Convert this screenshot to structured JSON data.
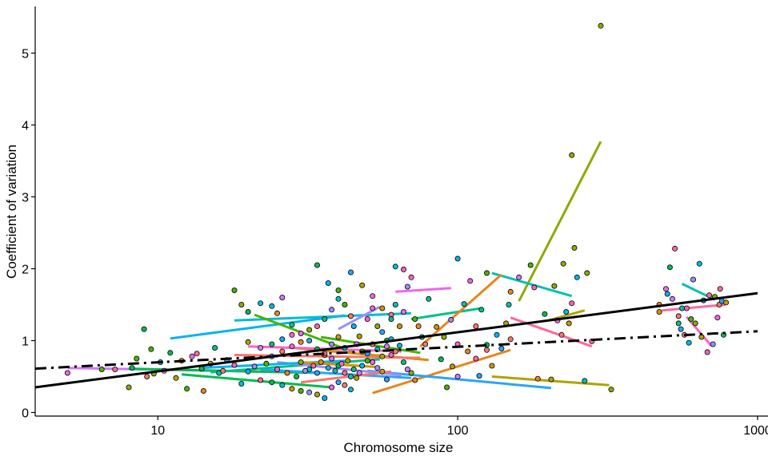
{
  "chart_data": {
    "type": "scatter",
    "title": "",
    "xlabel": "Chromosome size",
    "ylabel": "Coefficient of variation",
    "x_scale": "log10",
    "xlim": [
      3.9,
      1000
    ],
    "ylim": [
      -0.05,
      5.65
    ],
    "x_ticks": [
      10,
      100,
      1000
    ],
    "x_tick_labels": [
      "10",
      "100",
      "1000"
    ],
    "y_ticks": [
      0,
      1,
      2,
      3,
      4,
      5
    ],
    "y_tick_labels": [
      "0",
      "1",
      "2",
      "3",
      "4",
      "5"
    ],
    "grid": false,
    "legend": "none",
    "palette": [
      "#F8766D",
      "#E7851E",
      "#D09400",
      "#B2A100",
      "#89AC00",
      "#45B500",
      "#00BC51",
      "#00C087",
      "#00C0B2",
      "#00BCD6",
      "#00B3F2",
      "#29A3FF",
      "#9C8DFF",
      "#D277FF",
      "#F166E8",
      "#FF61C7",
      "#FF689E"
    ],
    "overall_fits": [
      {
        "style": "solid",
        "color": "#000000",
        "points": [
          [
            3.9,
            0.35
          ],
          [
            1000,
            1.66
          ]
        ]
      },
      {
        "style": "dotdash",
        "color": "#000000",
        "points": [
          [
            3.9,
            0.61
          ],
          [
            1000,
            1.13
          ]
        ]
      }
    ],
    "group_fits": [
      {
        "color": "#89AC00",
        "points": [
          [
            160,
            1.55
          ],
          [
            300,
            3.77
          ]
        ]
      },
      {
        "color": "#00B3F2",
        "points": [
          [
            11,
            1.03
          ],
          [
            42,
            1.35
          ]
        ]
      },
      {
        "color": "#00BCD6",
        "points": [
          [
            18,
            1.28
          ],
          [
            70,
            1.38
          ]
        ]
      },
      {
        "color": "#F166E8",
        "points": [
          [
            62,
            1.68
          ],
          [
            95,
            1.73
          ]
        ]
      },
      {
        "color": "#00C0B2",
        "points": [
          [
            130,
            1.94
          ],
          [
            240,
            1.62
          ]
        ]
      },
      {
        "color": "#00C087",
        "points": [
          [
            70,
            1.3
          ],
          [
            120,
            1.45
          ]
        ]
      },
      {
        "color": "#E7851E",
        "points": [
          [
            75,
            0.92
          ],
          [
            140,
            1.92
          ]
        ]
      },
      {
        "color": "#E7851E",
        "points": [
          [
            52,
            0.27
          ],
          [
            150,
            0.87
          ]
        ]
      },
      {
        "color": "#9C8DFF",
        "points": [
          [
            40,
            1.16
          ],
          [
            55,
            1.47
          ]
        ]
      },
      {
        "color": "#00C0B2",
        "points": [
          [
            560,
            1.79
          ],
          [
            720,
            1.57
          ]
        ]
      },
      {
        "color": "#FF689E",
        "points": [
          [
            480,
            1.42
          ],
          [
            780,
            1.5
          ]
        ]
      },
      {
        "color": "#FF61C7",
        "points": [
          [
            580,
            1.33
          ],
          [
            700,
            0.93
          ]
        ]
      },
      {
        "color": "#FF689E",
        "points": [
          [
            150,
            1.32
          ],
          [
            280,
            0.92
          ]
        ]
      },
      {
        "color": "#B2A100",
        "points": [
          [
            200,
            1.28
          ],
          [
            265,
            1.42
          ]
        ]
      },
      {
        "color": "#B2A100",
        "points": [
          [
            130,
            0.5
          ],
          [
            320,
            0.38
          ]
        ]
      },
      {
        "color": "#29A3FF",
        "points": [
          [
            50,
            0.58
          ],
          [
            205,
            0.34
          ]
        ]
      },
      {
        "color": "#45B500",
        "points": [
          [
            21,
            1.36
          ],
          [
            45,
            0.84
          ]
        ]
      },
      {
        "color": "#D09400",
        "points": [
          [
            28,
            0.9
          ],
          [
            80,
            0.73
          ]
        ]
      },
      {
        "color": "#00BC51",
        "points": [
          [
            12,
            0.53
          ],
          [
            38,
            0.35
          ]
        ]
      },
      {
        "color": "#F8766D",
        "points": [
          [
            18,
            0.8
          ],
          [
            75,
            0.76
          ]
        ]
      },
      {
        "color": "#D277FF",
        "points": [
          [
            5,
            0.62
          ],
          [
            28,
            0.56
          ]
        ]
      },
      {
        "color": "#00BC51",
        "points": [
          [
            8,
            0.61
          ],
          [
            35,
            0.55
          ]
        ]
      },
      {
        "color": "#FF61C7",
        "points": [
          [
            20,
            0.92
          ],
          [
            65,
            0.85
          ]
        ]
      },
      {
        "color": "#29A3FF",
        "points": [
          [
            22,
            0.6
          ],
          [
            70,
            0.48
          ]
        ]
      },
      {
        "color": "#00C087",
        "points": [
          [
            15,
            0.56
          ],
          [
            55,
            0.74
          ]
        ]
      },
      {
        "color": "#9C8DFF",
        "points": [
          [
            25,
            0.7
          ],
          [
            65,
            0.52
          ]
        ]
      },
      {
        "color": "#F8766D",
        "points": [
          [
            30,
            0.42
          ],
          [
            60,
            0.57
          ]
        ]
      },
      {
        "color": "#45B500",
        "points": [
          [
            35,
            1.05
          ],
          [
            75,
            0.83
          ]
        ]
      },
      {
        "color": "#00B3F2",
        "points": [
          [
            14,
            0.62
          ],
          [
            42,
            0.72
          ]
        ]
      },
      {
        "color": "#D09400",
        "points": [
          [
            30,
            0.7
          ],
          [
            55,
            0.63
          ]
        ]
      }
    ],
    "points": [
      [
        300,
        5.38,
        4
      ],
      [
        240,
        3.58,
        4
      ],
      [
        245,
        2.29,
        4
      ],
      [
        225,
        2.07,
        4
      ],
      [
        210,
        1.76,
        4
      ],
      [
        250,
        1.88,
        10
      ],
      [
        270,
        1.94,
        4
      ],
      [
        240,
        1.52,
        16
      ],
      [
        230,
        1.4,
        9
      ],
      [
        235,
        1.24,
        2
      ],
      [
        215,
        1.28,
        14
      ],
      [
        222,
        1.08,
        0
      ],
      [
        195,
        1.37,
        6
      ],
      [
        180,
        1.74,
        15
      ],
      [
        175,
        2.05,
        5
      ],
      [
        160,
        1.88,
        13
      ],
      [
        150,
        1.68,
        1
      ],
      [
        148,
        1.5,
        8
      ],
      [
        145,
        1.24,
        3
      ],
      [
        135,
        1.08,
        10
      ],
      [
        150,
        1.02,
        0
      ],
      [
        140,
        0.89,
        11
      ],
      [
        125,
        0.94,
        6
      ],
      [
        115,
        0.75,
        16
      ],
      [
        130,
        0.65,
        2
      ],
      [
        100,
        2.14,
        10
      ],
      [
        125,
        1.94,
        5
      ],
      [
        110,
        1.83,
        14
      ],
      [
        105,
        1.51,
        9
      ],
      [
        120,
        1.43,
        7
      ],
      [
        95,
        1.29,
        12
      ],
      [
        115,
        1.2,
        0
      ],
      [
        90,
        1.05,
        4
      ],
      [
        100,
        0.95,
        15
      ],
      [
        108,
        0.85,
        1
      ],
      [
        88,
        0.74,
        6
      ],
      [
        96,
        0.64,
        3
      ],
      [
        118,
        0.51,
        11
      ],
      [
        100,
        0.5,
        13
      ],
      [
        92,
        0.35,
        5
      ],
      [
        205,
        0.46,
        3
      ],
      [
        185,
        0.47,
        1
      ],
      [
        325,
        0.32,
        4
      ],
      [
        265,
        0.44,
        8
      ],
      [
        280,
        0.99,
        16
      ],
      [
        125,
        0.87,
        0
      ],
      [
        85,
        1.19,
        2
      ],
      [
        745,
        1.5,
        0
      ],
      [
        720,
        1.61,
        4
      ],
      [
        690,
        1.63,
        16
      ],
      [
        660,
        1.56,
        10
      ],
      [
        640,
        2.07,
        9
      ],
      [
        610,
        1.85,
        12
      ],
      [
        580,
        1.45,
        15
      ],
      [
        560,
        1.45,
        8
      ],
      [
        545,
        1.24,
        7
      ],
      [
        530,
        2.28,
        16
      ],
      [
        510,
        2.02,
        6
      ],
      [
        495,
        1.72,
        14
      ],
      [
        470,
        1.4,
        2
      ],
      [
        470,
        1.5,
        1
      ],
      [
        520,
        1.58,
        13
      ],
      [
        555,
        1.16,
        11
      ],
      [
        570,
        1.08,
        0
      ],
      [
        600,
        1.3,
        5
      ],
      [
        620,
        1.24,
        4
      ],
      [
        650,
        1.05,
        3
      ],
      [
        680,
        0.84,
        15
      ],
      [
        710,
        0.95,
        12
      ],
      [
        760,
        1.55,
        11
      ],
      [
        735,
        1.32,
        14
      ],
      [
        785,
        1.53,
        2
      ],
      [
        750,
        1.72,
        16
      ],
      [
        770,
        1.08,
        6
      ],
      [
        590,
        0.97,
        9
      ],
      [
        545,
        1.34,
        0
      ],
      [
        500,
        1.65,
        10
      ],
      [
        9,
        1.16,
        6
      ],
      [
        9.5,
        0.88,
        5
      ],
      [
        8.5,
        0.75,
        5
      ],
      [
        8,
        0.35,
        4
      ],
      [
        9.2,
        0.5,
        0
      ],
      [
        10.2,
        0.7,
        10
      ],
      [
        11,
        0.83,
        6
      ],
      [
        12,
        0.72,
        3
      ],
      [
        13,
        0.78,
        14
      ],
      [
        14,
        0.61,
        6
      ],
      [
        15,
        0.68,
        2
      ],
      [
        16,
        0.55,
        8
      ],
      [
        17,
        0.73,
        11
      ],
      [
        18,
        0.66,
        15
      ],
      [
        19,
        0.4,
        9
      ],
      [
        12.5,
        0.33,
        5
      ],
      [
        14.2,
        0.3,
        1
      ],
      [
        7.2,
        0.6,
        16
      ],
      [
        5.0,
        0.55,
        14
      ],
      [
        6.5,
        0.6,
        5
      ],
      [
        8.2,
        0.62,
        6
      ],
      [
        9.7,
        0.54,
        4
      ],
      [
        10.5,
        0.58,
        13
      ],
      [
        11.5,
        0.48,
        3
      ],
      [
        13.5,
        0.82,
        16
      ],
      [
        15.5,
        0.9,
        7
      ],
      [
        16.5,
        0.58,
        0
      ],
      [
        20,
        0.57,
        10
      ],
      [
        21,
        0.64,
        12
      ],
      [
        18,
        1.7,
        5
      ],
      [
        19,
        1.5,
        4
      ],
      [
        20,
        1.4,
        6
      ],
      [
        22,
        1.52,
        9
      ],
      [
        24,
        1.48,
        10
      ],
      [
        25,
        1.38,
        1
      ],
      [
        26,
        1.6,
        13
      ],
      [
        28,
        1.22,
        8
      ],
      [
        30,
        1.1,
        14
      ],
      [
        32,
        1.0,
        11
      ],
      [
        34,
        1.2,
        16
      ],
      [
        36,
        1.3,
        7
      ],
      [
        38,
        1.43,
        12
      ],
      [
        40,
        1.58,
        9
      ],
      [
        42,
        1.5,
        5
      ],
      [
        44,
        1.34,
        0
      ],
      [
        45,
        1.2,
        10
      ],
      [
        47,
        1.06,
        3
      ],
      [
        50,
        1.3,
        15
      ],
      [
        52,
        1.45,
        14
      ],
      [
        54,
        1.2,
        4
      ],
      [
        56,
        1.12,
        11
      ],
      [
        58,
        1.0,
        6
      ],
      [
        60,
        1.36,
        16
      ],
      [
        62,
        1.5,
        9
      ],
      [
        64,
        1.2,
        2
      ],
      [
        66,
        1.4,
        13
      ],
      [
        68,
        1.75,
        12
      ],
      [
        70,
        1.88,
        15
      ],
      [
        72,
        1.3,
        5
      ],
      [
        74,
        1.2,
        1
      ],
      [
        76,
        1.05,
        8
      ],
      [
        78,
        0.95,
        0
      ],
      [
        62,
        2.03,
        9
      ],
      [
        66,
        1.99,
        15
      ],
      [
        80,
        1.58,
        7
      ],
      [
        34,
        2.05,
        6
      ],
      [
        37,
        1.8,
        10
      ],
      [
        40,
        1.7,
        5
      ],
      [
        44,
        1.95,
        11
      ],
      [
        48,
        1.77,
        3
      ],
      [
        52,
        1.62,
        14
      ],
      [
        56,
        1.45,
        2
      ],
      [
        60,
        1.3,
        7
      ],
      [
        24,
        0.78,
        12
      ],
      [
        26,
        0.85,
        0
      ],
      [
        28,
        0.92,
        15
      ],
      [
        30,
        0.7,
        4
      ],
      [
        32,
        0.6,
        9
      ],
      [
        34,
        0.55,
        11
      ],
      [
        36,
        0.8,
        1
      ],
      [
        38,
        0.75,
        13
      ],
      [
        40,
        0.65,
        6
      ],
      [
        42,
        0.55,
        16
      ],
      [
        44,
        0.5,
        8
      ],
      [
        46,
        0.48,
        3
      ],
      [
        48,
        0.65,
        10
      ],
      [
        50,
        0.72,
        5
      ],
      [
        52,
        0.7,
        14
      ],
      [
        54,
        0.62,
        12
      ],
      [
        56,
        0.57,
        2
      ],
      [
        58,
        0.46,
        11
      ],
      [
        60,
        0.8,
        15
      ],
      [
        62,
        0.85,
        0
      ],
      [
        64,
        0.93,
        9
      ],
      [
        66,
        0.7,
        7
      ],
      [
        68,
        0.6,
        13
      ],
      [
        70,
        0.55,
        4
      ],
      [
        72,
        0.45,
        1
      ],
      [
        22,
        0.45,
        16
      ],
      [
        24,
        0.42,
        6
      ],
      [
        26,
        0.38,
        8
      ],
      [
        28,
        0.33,
        2
      ],
      [
        30,
        0.3,
        5
      ],
      [
        32,
        0.28,
        12
      ],
      [
        34,
        0.25,
        3
      ],
      [
        36,
        0.2,
        10
      ],
      [
        38,
        0.35,
        14
      ],
      [
        40,
        0.42,
        11
      ],
      [
        42,
        0.38,
        0
      ],
      [
        44,
        0.32,
        9
      ],
      [
        20,
        0.98,
        3
      ],
      [
        22,
        0.9,
        13
      ],
      [
        24,
        0.95,
        7
      ],
      [
        26,
        1.02,
        10
      ],
      [
        28,
        1.08,
        15
      ],
      [
        30,
        0.98,
        1
      ],
      [
        32,
        1.15,
        4
      ],
      [
        34,
        0.88,
        6
      ],
      [
        36,
        0.82,
        16
      ],
      [
        38,
        0.95,
        12
      ],
      [
        40,
        1.05,
        2
      ],
      [
        42,
        0.9,
        8
      ],
      [
        46,
        0.95,
        14
      ],
      [
        48,
        0.85,
        5
      ],
      [
        50,
        0.82,
        11
      ],
      [
        52,
        0.95,
        0
      ],
      [
        54,
        0.88,
        9
      ],
      [
        56,
        0.78,
        3
      ],
      [
        58,
        0.92,
        13
      ],
      [
        60,
        1.02,
        10
      ],
      [
        23,
        0.68,
        5
      ],
      [
        25,
        0.6,
        14
      ],
      [
        27,
        0.55,
        1
      ],
      [
        29,
        0.5,
        6
      ],
      [
        31,
        0.58,
        12
      ],
      [
        33,
        0.65,
        16
      ],
      [
        35,
        0.7,
        2
      ],
      [
        37,
        0.62,
        11
      ],
      [
        39,
        0.58,
        8
      ],
      [
        41,
        0.68,
        15
      ],
      [
        43,
        0.72,
        4
      ],
      [
        45,
        0.6,
        7
      ],
      [
        47,
        0.55,
        13
      ]
    ]
  }
}
